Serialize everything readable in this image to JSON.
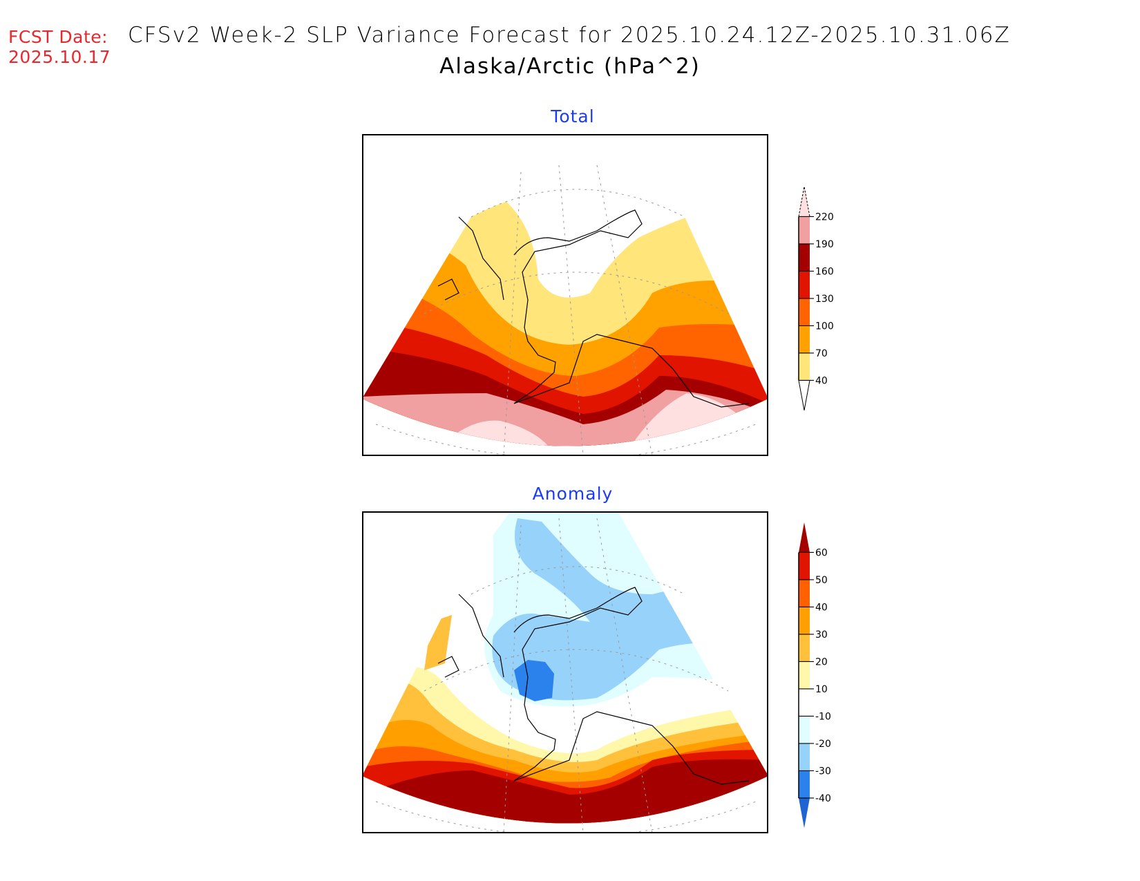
{
  "header": {
    "fcst_label": "FCST Date:",
    "fcst_date": "2025.10.17",
    "title_line1": "CFSv2 Week-2 SLP Variance Forecast for 2025.10.24.12Z-2025.10.31.06Z",
    "title_line2": "Alaska/Arctic (hPa^2)"
  },
  "colors": {
    "fcst_text": "#e8282d",
    "panel_title": "#1c3bf5"
  },
  "chart_data": [
    {
      "type": "heatmap",
      "title": "Total",
      "units": "hPa^2",
      "region": "Alaska/Arctic",
      "projection": "polar stereographic sector",
      "colorbar": {
        "levels": [
          40,
          70,
          100,
          130,
          160,
          190,
          220
        ],
        "colors": [
          "#ffe57a",
          "#ffa200",
          "#ff6400",
          "#e11400",
          "#a50000",
          "#f0a0a0",
          "#ffe0e0"
        ],
        "extend": "both",
        "below_color": "#ffffff",
        "tick_labels": [
          "220",
          "190",
          "160",
          "130",
          "100",
          "70",
          "40"
        ]
      },
      "pattern": "Variance increases southward: 40-70 over northern Alaska and Beaufort Sea, 100-160 across Bering Sea and Gulf of Alaska, 160-220+ over North Pacific south of the Aleutians"
    },
    {
      "type": "heatmap",
      "title": "Anomaly",
      "units": "hPa^2",
      "region": "Alaska/Arctic",
      "projection": "polar stereographic sector",
      "colorbar": {
        "levels": [
          -40,
          -30,
          -20,
          -10,
          10,
          20,
          30,
          40,
          50,
          60
        ],
        "colors": [
          "#1e64d2",
          "#2c82ec",
          "#96d2fa",
          "#e0feff",
          "#ffffff",
          "#fff8aa",
          "#ffc03c",
          "#ffa000",
          "#ff6000",
          "#e11400",
          "#a50000"
        ],
        "extend": "both",
        "tick_labels": [
          "60",
          "50",
          "40",
          "30",
          "20",
          "10",
          "-10",
          "-20",
          "-30",
          "-40"
        ]
      },
      "pattern": "Negative anomalies (-10 to -40) over western Alaska, Arctic Ocean and Bering Strait with minimum near Norton Sound; strong positive anomalies (>60) over North Pacific south of Aleutians and Gulf of Alaska; positive 10-40 over eastern Siberia"
    }
  ],
  "panels": {
    "total_title": "Total",
    "anomaly_title": "Anomaly"
  }
}
